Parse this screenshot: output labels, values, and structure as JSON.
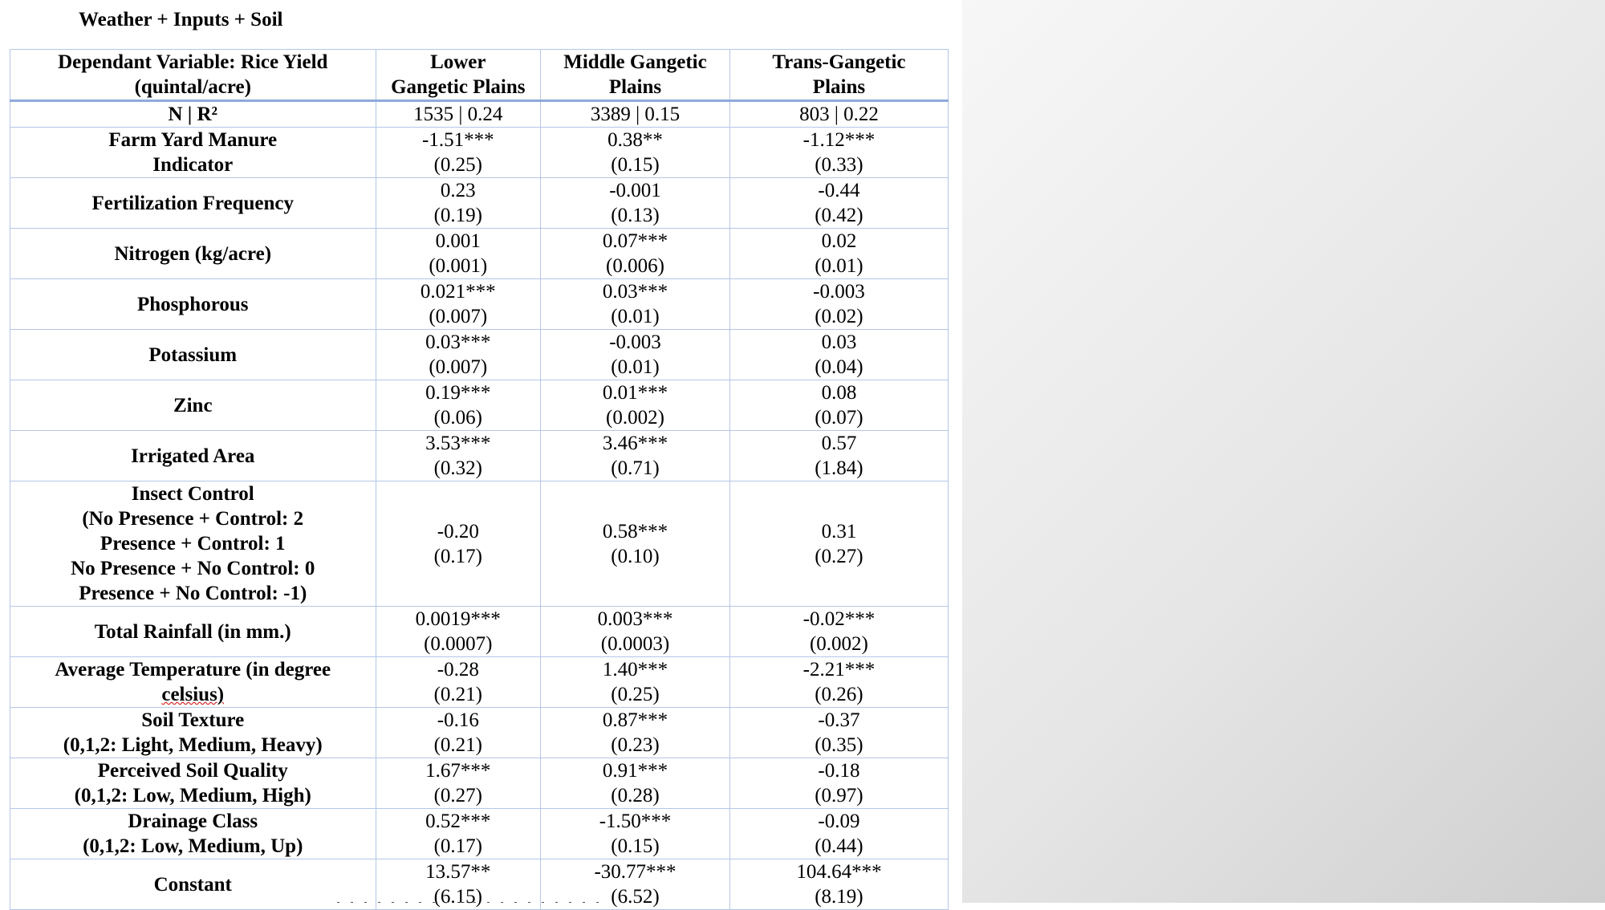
{
  "document": {
    "heading": "Weather + Inputs + Soil"
  },
  "table": {
    "header": {
      "label": [
        "Dependant Variable: Rice Yield",
        "(quintal/acre)"
      ],
      "columns": [
        [
          "Lower",
          "Gangetic Plains"
        ],
        [
          "Middle Gangetic",
          "Plains"
        ],
        [
          "Trans-Gangetic",
          "Plains"
        ]
      ]
    },
    "stats_row": {
      "label": "N | R²",
      "values": [
        "1535 | 0.24",
        "3389 | 0.15",
        "803 | 0.22"
      ]
    },
    "rows": [
      {
        "label": [
          "Farm Yard Manure",
          "Indicator"
        ],
        "cells": [
          [
            "-1.51***",
            "(0.25)"
          ],
          [
            "0.38**",
            "(0.15)"
          ],
          [
            "-1.12***",
            "(0.33)"
          ]
        ]
      },
      {
        "label": [
          "Fertilization Frequency"
        ],
        "cells": [
          [
            "0.23",
            "(0.19)"
          ],
          [
            "-0.001",
            "(0.13)"
          ],
          [
            "-0.44",
            "(0.42)"
          ]
        ]
      },
      {
        "label": [
          "Nitrogen (kg/acre)"
        ],
        "cells": [
          [
            "0.001",
            "(0.001)"
          ],
          [
            "0.07***",
            "(0.006)"
          ],
          [
            "0.02",
            "(0.01)"
          ]
        ]
      },
      {
        "label": [
          "Phosphorous"
        ],
        "cells": [
          [
            "0.021***",
            "(0.007)"
          ],
          [
            "0.03***",
            "(0.01)"
          ],
          [
            "-0.003",
            "(0.02)"
          ]
        ]
      },
      {
        "label": [
          "Potassium"
        ],
        "cells": [
          [
            "0.03***",
            "(0.007)"
          ],
          [
            "-0.003",
            "(0.01)"
          ],
          [
            "0.03",
            "(0.04)"
          ]
        ]
      },
      {
        "label": [
          "Zinc"
        ],
        "cells": [
          [
            "0.19***",
            "(0.06)"
          ],
          [
            "0.01***",
            "(0.002)"
          ],
          [
            "0.08",
            "(0.07)"
          ]
        ]
      },
      {
        "label": [
          "Irrigated Area"
        ],
        "cells": [
          [
            "3.53***",
            "(0.32)"
          ],
          [
            "3.46***",
            "(0.71)"
          ],
          [
            "0.57",
            "(1.84)"
          ]
        ]
      },
      {
        "label": [
          "Insect Control",
          "(No Presence + Control: 2",
          "Presence + Control: 1",
          "No Presence + No Control: 0",
          "Presence + No Control: -1)"
        ],
        "cells": [
          [
            "-0.20",
            "(0.17)"
          ],
          [
            "0.58***",
            "(0.10)"
          ],
          [
            "0.31",
            "(0.27)"
          ]
        ]
      },
      {
        "label": [
          "Total Rainfall (in mm.)"
        ],
        "cells": [
          [
            "0.0019***",
            "(0.0007)"
          ],
          [
            "0.003***",
            "(0.0003)"
          ],
          [
            "-0.02***",
            "(0.002)"
          ]
        ]
      },
      {
        "label": [
          "Average Temperature (in degree",
          "celsius)"
        ],
        "cells": [
          [
            "-0.28",
            "(0.21)"
          ],
          [
            "1.40***",
            "(0.25)"
          ],
          [
            "-2.21***",
            "(0.26)"
          ]
        ]
      },
      {
        "label": [
          "Soil Texture",
          "(0,1,2: Light, Medium, Heavy)"
        ],
        "cells": [
          [
            "-0.16",
            "(0.21)"
          ],
          [
            "0.87***",
            "(0.23)"
          ],
          [
            "-0.37",
            "(0.35)"
          ]
        ]
      },
      {
        "label": [
          "Perceived Soil Quality",
          "(0,1,2: Low, Medium, High)"
        ],
        "cells": [
          [
            "1.67***",
            "(0.27)"
          ],
          [
            "0.91***",
            "(0.28)"
          ],
          [
            "-0.18",
            "(0.97)"
          ]
        ]
      },
      {
        "label": [
          "Drainage Class",
          "(0,1,2: Low, Medium, Up)"
        ],
        "cells": [
          [
            "0.52***",
            "(0.17)"
          ],
          [
            "-1.50***",
            "(0.15)"
          ],
          [
            "-0.09",
            "(0.44)"
          ]
        ]
      },
      {
        "label": [
          "Constant"
        ],
        "cells": [
          [
            "13.57**",
            "(6.15)"
          ],
          [
            "-30.77***",
            "(6.52)"
          ],
          [
            "104.64***",
            "(8.19)"
          ]
        ]
      }
    ]
  }
}
